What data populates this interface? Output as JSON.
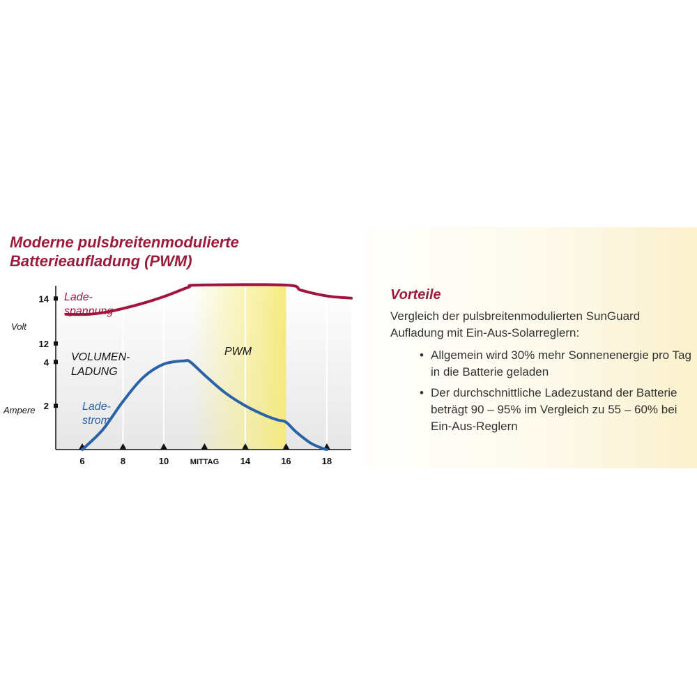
{
  "chart_data": {
    "type": "line",
    "title": [
      "Moderne pulsbreitenmodulierte",
      "Batterieaufladung (PWM)"
    ],
    "x_range": [
      4.7,
      19.2
    ],
    "x_ticks": [
      {
        "x": 6,
        "label": "6"
      },
      {
        "x": 8,
        "label": "8"
      },
      {
        "x": 10,
        "label": "10"
      },
      {
        "x": 12,
        "label": "MITTAG"
      },
      {
        "x": 14,
        "label": "14"
      },
      {
        "x": 16,
        "label": "16"
      },
      {
        "x": 18,
        "label": "18"
      }
    ],
    "voltage_axis": {
      "label": "Volt",
      "range": [
        11.0,
        15.5
      ],
      "ticks": [
        {
          "v": 12,
          "label": "12"
        },
        {
          "v": 14,
          "label": "14"
        }
      ]
    },
    "current_axis": {
      "label": "Ampere",
      "range": [
        0,
        7
      ],
      "ticks": [
        {
          "v": 2,
          "label": "2"
        },
        {
          "v": 4,
          "label": "4"
        }
      ]
    },
    "series": [
      {
        "name": "Lade-spannung",
        "label_lines": [
          "Lade-",
          "spannung"
        ],
        "axis": "voltage",
        "color": "#a0153e",
        "points": [
          [
            5.2,
            13.3
          ],
          [
            6.3,
            13.3
          ],
          [
            7.2,
            13.4
          ],
          [
            8.2,
            13.6
          ],
          [
            9.2,
            13.85
          ],
          [
            10.2,
            14.15
          ],
          [
            11.2,
            14.5
          ],
          [
            11.7,
            14.6
          ],
          [
            16.0,
            14.6
          ],
          [
            16.7,
            14.38
          ],
          [
            17.5,
            14.2
          ],
          [
            18.3,
            14.08
          ],
          [
            19.2,
            14.02
          ]
        ]
      },
      {
        "name": "Lade-strom",
        "label_lines": [
          "Lade-",
          "strom"
        ],
        "axis": "current",
        "color": "#2a62a8",
        "points": [
          [
            6.0,
            0.0
          ],
          [
            7.0,
            0.9
          ],
          [
            8.0,
            2.2
          ],
          [
            9.0,
            3.3
          ],
          [
            10.0,
            3.9
          ],
          [
            11.0,
            4.05
          ],
          [
            11.3,
            4.0
          ],
          [
            12.0,
            3.4
          ],
          [
            13.0,
            2.6
          ],
          [
            14.0,
            2.0
          ],
          [
            15.0,
            1.55
          ],
          [
            15.6,
            1.35
          ],
          [
            16.0,
            1.25
          ],
          [
            16.5,
            0.8
          ],
          [
            17.2,
            0.3
          ],
          [
            17.8,
            0.05
          ],
          [
            18.0,
            0.0
          ]
        ]
      }
    ],
    "regions": [
      {
        "label": "PWM",
        "x_start": 11.3,
        "x_end": 16.0,
        "color": "#f7ef96"
      },
      {
        "label_lines": [
          "VOLUMEN-",
          "LADUNG"
        ],
        "x_start": 4.7,
        "x_end": 11.3
      }
    ],
    "grid": true,
    "gridline_x": [
      8,
      10,
      14,
      18
    ]
  },
  "benefits": {
    "heading": "Vorteile",
    "intro": "Vergleich der pulsbreitenmodulierten SunGuard Aufladung mit Ein-Aus-Solarreglern:",
    "items": [
      "Allgemein wird 30% mehr Sonnenenergie pro Tag in die Batterie geladen",
      "Der durchschnittliche Ladezustand der Batterie beträgt 90 – 95% im Vergleich zu 55 – 60% bei Ein-Aus-Reglern"
    ]
  }
}
